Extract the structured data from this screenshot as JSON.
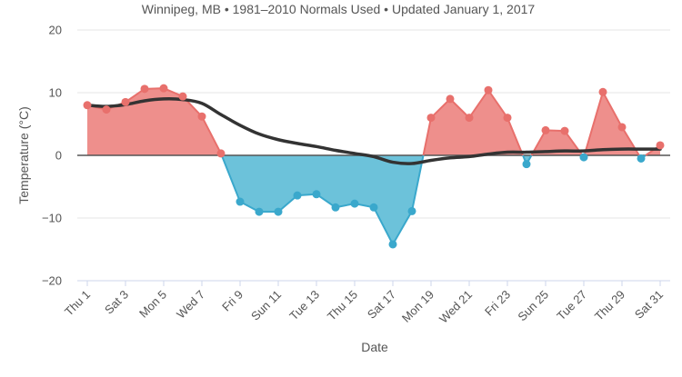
{
  "chart_data": {
    "type": "area",
    "title": "",
    "subtitle": "Winnipeg, MB • 1981–2010 Normals Used • Updated January 1, 2017",
    "xlabel": "Date",
    "ylabel": "Temperature (°C)",
    "ylim": [
      -20,
      20
    ],
    "yticks": [
      20,
      10,
      0,
      -10,
      -20
    ],
    "xticks": [
      "Thu 1",
      "Sat 3",
      "Mon 5",
      "Wed 7",
      "Fri 9",
      "Sun 11",
      "Tue 13",
      "Thu 15",
      "Sat 17",
      "Mon 19",
      "Wed 21",
      "Fri 23",
      "Sun 25",
      "Tue 27",
      "Thu 29",
      "Sat 31"
    ],
    "xticks_day": [
      1,
      3,
      5,
      7,
      9,
      11,
      13,
      15,
      17,
      19,
      21,
      23,
      25,
      27,
      29,
      31
    ],
    "x_range": [
      1,
      31
    ],
    "grid": true,
    "legend": "none",
    "colors": {
      "positive_fill": "#ee8f8c",
      "positive_line": "#e8706c",
      "negative_fill": "#6cc2da",
      "negative_line": "#3aa8cc",
      "normal_line": "#333333",
      "zero_line": "#555555",
      "grid": "#e6e6e6"
    },
    "series": [
      {
        "name": "",
        "x": [
          1,
          2,
          3,
          4,
          5,
          6,
          7,
          8,
          9,
          10,
          11,
          12,
          13,
          14,
          15,
          16,
          17,
          18,
          19,
          20,
          21,
          22,
          23,
          24,
          25,
          26,
          27,
          28,
          29,
          30,
          31
        ],
        "values": [
          8,
          7.3,
          8.5,
          10.6,
          10.7,
          9.4,
          6.2,
          0.3,
          -7.4,
          -9,
          -9,
          -6.4,
          -6.2,
          -8.3,
          -7.7,
          -8.3,
          -14.2,
          -8.9,
          6,
          9,
          6,
          10.4,
          6,
          -1.4,
          4,
          3.9,
          -0.3,
          10.1,
          4.5,
          -0.5,
          1.6
        ]
      },
      {
        "name": "",
        "x": [
          1,
          2,
          3,
          4,
          5,
          6,
          7,
          8,
          9,
          10,
          11,
          12,
          13,
          14,
          15,
          16,
          17,
          18,
          19,
          20,
          21,
          22,
          23,
          24,
          25,
          26,
          27,
          28,
          29,
          30,
          31
        ],
        "values": [
          8,
          7.8,
          8.1,
          8.7,
          9,
          8.9,
          8.3,
          6.5,
          4.8,
          3.4,
          2.5,
          1.9,
          1.4,
          0.8,
          0.3,
          -0.2,
          -1.1,
          -1.3,
          -0.8,
          -0.4,
          -0.2,
          0.2,
          0.5,
          0.5,
          0.6,
          0.7,
          0.7,
          0.9,
          1,
          1,
          1
        ]
      }
    ]
  }
}
